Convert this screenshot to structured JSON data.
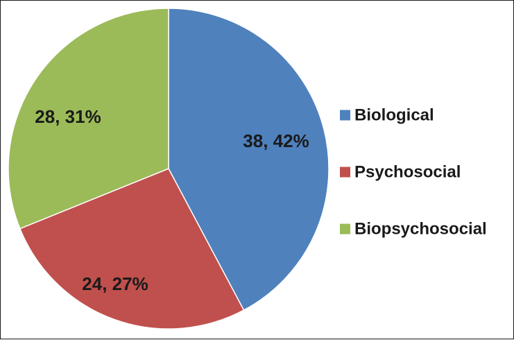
{
  "chart_data": {
    "type": "pie",
    "title": "",
    "slices": [
      {
        "name": "Biological",
        "value": 38,
        "percent": 42,
        "label": "38, 42%",
        "color": "#4f81bd"
      },
      {
        "name": "Psychosocial",
        "value": 24,
        "percent": 27,
        "label": "24, 27%",
        "color": "#c0504d"
      },
      {
        "name": "Biopsychosocial",
        "value": 28,
        "percent": 31,
        "label": "28, 31%",
        "color": "#9bbb59"
      }
    ],
    "start_angle_deg": 0,
    "direction": "clockwise",
    "legend": {
      "position": "right",
      "entries": [
        "Biological",
        "Psychosocial",
        "Biopsychosocial"
      ]
    }
  }
}
